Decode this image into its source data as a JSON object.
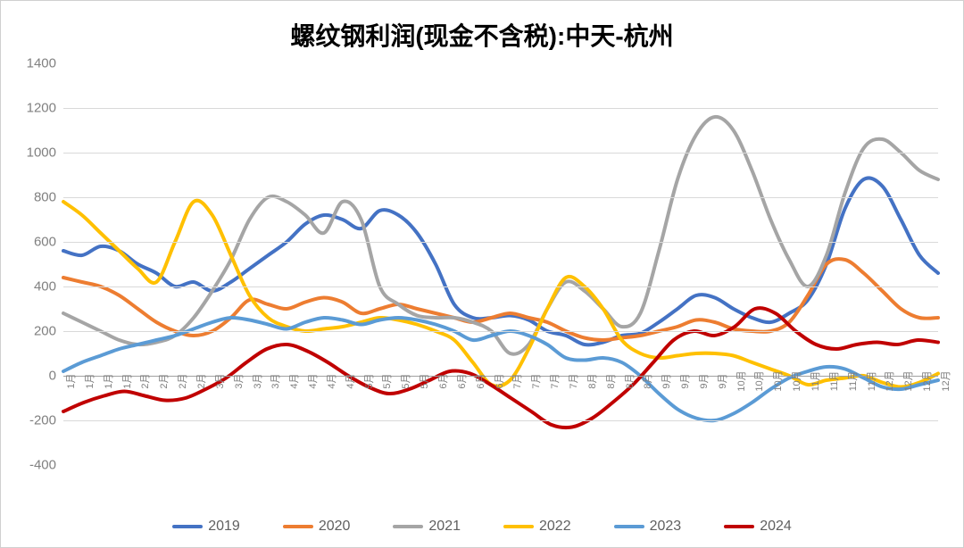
{
  "chart": {
    "type": "line",
    "title": "螺纹钢利润(现金不含税):中天-杭州",
    "title_fontsize": 28,
    "title_color": "#000000",
    "background_color": "#ffffff",
    "grid_color": "#d9d9d9",
    "axis_color": "#a0a0a0",
    "tick_label_color": "#808080",
    "ylabel_fontsize": 15,
    "xlabel_fontsize": 11,
    "ylim": [
      -400,
      1400
    ],
    "ytick_step": 200,
    "yticks": [
      -400,
      -200,
      0,
      200,
      400,
      600,
      800,
      1000,
      1200,
      1400
    ],
    "x_count": 48,
    "xticks_labels": [
      "1月",
      "1月",
      "1月",
      "1月",
      "2月",
      "2月",
      "2月",
      "2月",
      "3月",
      "3月",
      "3月",
      "3月",
      "4月",
      "4月",
      "4月",
      "4月",
      "5月",
      "5月",
      "5月",
      "5月",
      "6月",
      "6月",
      "6月",
      "6月",
      "7月",
      "7月",
      "7月",
      "7月",
      "8月",
      "8月",
      "8月",
      "8月",
      "9月",
      "9月",
      "9月",
      "9月",
      "10月",
      "10月",
      "10月",
      "10月",
      "11月",
      "11月",
      "11月",
      "11月",
      "12月",
      "12月",
      "12月",
      "12月"
    ],
    "line_width": 4,
    "series": [
      {
        "name": "2019",
        "color": "#4472c4",
        "values": [
          560,
          540,
          580,
          560,
          500,
          460,
          400,
          420,
          380,
          420,
          480,
          540,
          600,
          680,
          720,
          700,
          660,
          740,
          720,
          640,
          500,
          320,
          260,
          260,
          270,
          250,
          200,
          180,
          140,
          150,
          180,
          190,
          240,
          300,
          360,
          350,
          300,
          260,
          240,
          280,
          340,
          500,
          750,
          880,
          850,
          700,
          540,
          460
        ]
      },
      {
        "name": "2020",
        "color": "#ed7d31",
        "values": [
          440,
          420,
          400,
          360,
          300,
          240,
          200,
          180,
          200,
          260,
          340,
          320,
          300,
          330,
          350,
          330,
          280,
          300,
          320,
          300,
          280,
          260,
          240,
          260,
          280,
          260,
          240,
          200,
          170,
          160,
          170,
          180,
          200,
          220,
          250,
          240,
          210,
          200,
          200,
          240,
          360,
          500,
          520,
          460,
          380,
          300,
          260,
          260
        ]
      },
      {
        "name": "2021",
        "color": "#a5a5a5",
        "values": [
          280,
          240,
          200,
          160,
          140,
          150,
          180,
          260,
          380,
          520,
          700,
          800,
          780,
          720,
          640,
          780,
          700,
          400,
          320,
          270,
          260,
          260,
          240,
          200,
          100,
          140,
          300,
          420,
          380,
          300,
          220,
          280,
          560,
          880,
          1080,
          1160,
          1100,
          920,
          700,
          520,
          400,
          540,
          820,
          1020,
          1060,
          1000,
          920,
          880
        ]
      },
      {
        "name": "2022",
        "color": "#ffc000",
        "values": [
          780,
          720,
          640,
          560,
          480,
          420,
          600,
          780,
          720,
          540,
          360,
          260,
          220,
          200,
          210,
          220,
          240,
          260,
          250,
          230,
          200,
          160,
          60,
          -40,
          -20,
          120,
          300,
          440,
          400,
          300,
          160,
          100,
          80,
          90,
          100,
          100,
          90,
          60,
          30,
          0,
          -40,
          -20,
          -10,
          0,
          -30,
          -50,
          -30,
          10
        ]
      },
      {
        "name": "2023",
        "color": "#5b9bd5",
        "values": [
          20,
          60,
          90,
          120,
          140,
          160,
          180,
          210,
          240,
          260,
          250,
          230,
          210,
          240,
          260,
          250,
          230,
          250,
          260,
          250,
          230,
          200,
          160,
          180,
          200,
          180,
          140,
          80,
          70,
          80,
          60,
          0,
          -80,
          -150,
          -190,
          -200,
          -170,
          -120,
          -60,
          -10,
          20,
          40,
          30,
          -10,
          -50,
          -60,
          -40,
          -20
        ]
      },
      {
        "name": "2024",
        "color": "#c00000",
        "values": [
          -160,
          -120,
          -90,
          -70,
          -90,
          -110,
          -100,
          -60,
          -10,
          60,
          120,
          140,
          110,
          60,
          0,
          -50,
          -80,
          -60,
          -20,
          20,
          10,
          -40,
          -100,
          -160,
          -220,
          -230,
          -190,
          -120,
          -40,
          60,
          160,
          200,
          180,
          220,
          300,
          280,
          200,
          140,
          120,
          140,
          150,
          140,
          160,
          150
        ]
      }
    ],
    "legend": {
      "position": "bottom",
      "fontsize": 16,
      "swatch_width": 34,
      "swatch_height": 4,
      "gap": 48
    }
  }
}
